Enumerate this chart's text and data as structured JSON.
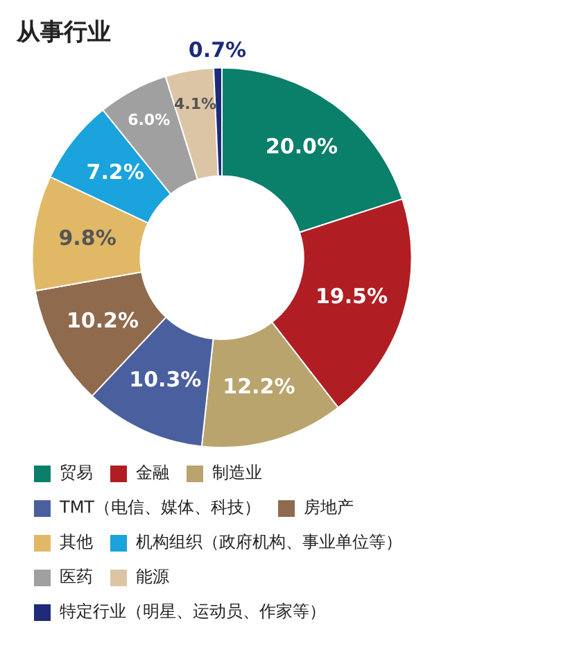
{
  "chart_data": {
    "type": "donut",
    "title": "从事行业",
    "categories": [
      "贸易",
      "金融",
      "制造业",
      "TMT（电信、媒体、科技）",
      "房地产",
      "其他",
      "机构组织（政府机构、事业单位等）",
      "医药",
      "能源",
      "特定行业（明星、运动员、作家等）"
    ],
    "values": [
      20.0,
      19.5,
      12.2,
      10.3,
      10.2,
      9.8,
      7.2,
      6.0,
      4.1,
      0.7
    ],
    "value_labels": [
      "20.0%",
      "19.5%",
      "12.2%",
      "10.3%",
      "10.2%",
      "9.8%",
      "7.2%",
      "6.0%",
      "4.1%",
      "0.7%"
    ],
    "colors": [
      "#0a7f6a",
      "#b01e23",
      "#b9a46e",
      "#4a5f9e",
      "#8f6a4d",
      "#e0b866",
      "#1aa3dc",
      "#a0a0a0",
      "#dcc5a5",
      "#1d2b7a"
    ],
    "legend": "bottom"
  }
}
